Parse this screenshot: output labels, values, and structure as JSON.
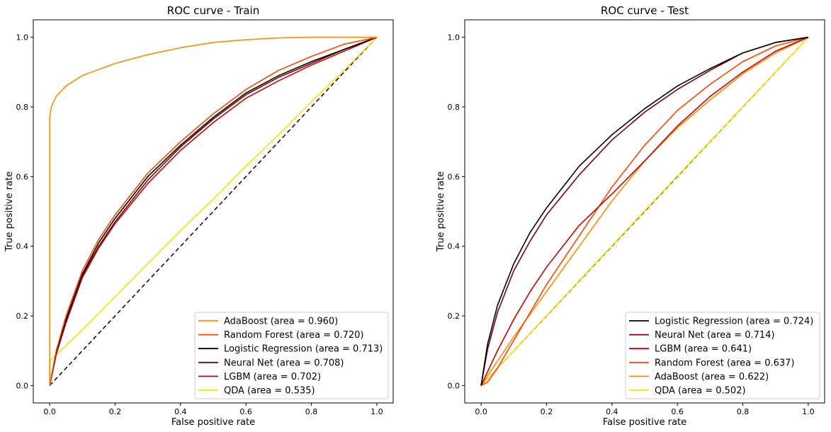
{
  "chart_data": [
    {
      "type": "line",
      "title": "ROC curve - Train",
      "xlabel": "False positive rate",
      "ylabel": "True positive rate",
      "xlim": [
        -0.05,
        1.05
      ],
      "ylim": [
        -0.05,
        1.05
      ],
      "xticks": [
        "0.0",
        "0.2",
        "0.4",
        "0.6",
        "0.8",
        "1.0"
      ],
      "yticks": [
        "0.0",
        "0.2",
        "0.4",
        "0.6",
        "0.8",
        "1.0"
      ],
      "grid": false,
      "legend_position": "lower right",
      "series": [
        {
          "name": "AdaBoost (area = 0.960)",
          "color": "#ff8c00",
          "x": [
            0,
            0,
            0.005,
            0.02,
            0.05,
            0.1,
            0.2,
            0.3,
            0.4,
            0.5,
            0.6,
            0.7,
            0.8,
            0.9,
            1.0
          ],
          "y": [
            0,
            0.77,
            0.8,
            0.83,
            0.86,
            0.89,
            0.925,
            0.95,
            0.97,
            0.985,
            0.993,
            0.998,
            1.0,
            1.0,
            1.0
          ]
        },
        {
          "name": "Random Forest (area = 0.720)",
          "color": "#ff4500",
          "x": [
            0,
            0.02,
            0.05,
            0.1,
            0.15,
            0.2,
            0.3,
            0.4,
            0.5,
            0.6,
            0.7,
            0.8,
            0.9,
            1.0
          ],
          "y": [
            0,
            0.1,
            0.2,
            0.33,
            0.42,
            0.49,
            0.61,
            0.7,
            0.78,
            0.85,
            0.905,
            0.945,
            0.98,
            1.0
          ]
        },
        {
          "name": "Logistic Regression (area = 0.713)",
          "color": "#000000",
          "x": [
            0,
            0.02,
            0.05,
            0.1,
            0.15,
            0.2,
            0.3,
            0.4,
            0.5,
            0.6,
            0.7,
            0.8,
            0.9,
            1.0
          ],
          "y": [
            0,
            0.095,
            0.19,
            0.32,
            0.41,
            0.48,
            0.6,
            0.69,
            0.77,
            0.84,
            0.89,
            0.93,
            0.965,
            1.0
          ]
        },
        {
          "name": "Neural Net (area = 0.708)",
          "color": "#800000",
          "x": [
            0,
            0.02,
            0.05,
            0.1,
            0.15,
            0.2,
            0.3,
            0.4,
            0.5,
            0.6,
            0.7,
            0.8,
            0.9,
            1.0
          ],
          "y": [
            0,
            0.09,
            0.185,
            0.315,
            0.4,
            0.47,
            0.59,
            0.685,
            0.765,
            0.835,
            0.885,
            0.925,
            0.965,
            1.0
          ]
        },
        {
          "name": "LGBM (area = 0.702)",
          "color": "#cc0000",
          "x": [
            0,
            0.02,
            0.05,
            0.1,
            0.15,
            0.2,
            0.3,
            0.4,
            0.5,
            0.6,
            0.7,
            0.8,
            0.9,
            1.0
          ],
          "y": [
            0,
            0.09,
            0.18,
            0.31,
            0.395,
            0.465,
            0.58,
            0.675,
            0.755,
            0.825,
            0.875,
            0.92,
            0.96,
            1.0
          ]
        },
        {
          "name": "QDA (area = 0.535)",
          "color": "#ffe000",
          "x": [
            0,
            0,
            0.1,
            0.2,
            0.3,
            0.4,
            0.5,
            0.6,
            0.7,
            0.8,
            0.9,
            1.0
          ],
          "y": [
            0,
            0.07,
            0.16,
            0.255,
            0.35,
            0.445,
            0.535,
            0.63,
            0.72,
            0.815,
            0.905,
            1.0
          ]
        },
        {
          "name": "",
          "color": "#000000",
          "style": "dashed",
          "x": [
            0,
            1
          ],
          "y": [
            0,
            1
          ]
        }
      ]
    },
    {
      "type": "line",
      "title": "ROC curve - Test",
      "xlabel": "False positive rate",
      "ylabel": "True positive rate",
      "xlim": [
        -0.05,
        1.05
      ],
      "ylim": [
        -0.05,
        1.05
      ],
      "xticks": [
        "0.0",
        "0.2",
        "0.4",
        "0.6",
        "0.8",
        "1.0"
      ],
      "yticks": [
        "0.0",
        "0.2",
        "0.4",
        "0.6",
        "0.8",
        "1.0"
      ],
      "grid": false,
      "legend_position": "lower right",
      "series": [
        {
          "name": "Logistic Regression (area = 0.724)",
          "color": "#000000",
          "x": [
            0,
            0.02,
            0.05,
            0.1,
            0.15,
            0.2,
            0.3,
            0.4,
            0.5,
            0.6,
            0.7,
            0.8,
            0.9,
            1.0
          ],
          "y": [
            0,
            0.12,
            0.23,
            0.35,
            0.44,
            0.51,
            0.63,
            0.72,
            0.795,
            0.86,
            0.91,
            0.955,
            0.985,
            1.0
          ]
        },
        {
          "name": "Neural Net (area = 0.714)",
          "color": "#800000",
          "x": [
            0,
            0.02,
            0.05,
            0.1,
            0.15,
            0.2,
            0.3,
            0.4,
            0.5,
            0.6,
            0.7,
            0.8,
            0.9,
            1.0
          ],
          "y": [
            0,
            0.105,
            0.21,
            0.33,
            0.415,
            0.49,
            0.605,
            0.705,
            0.785,
            0.85,
            0.905,
            0.955,
            0.985,
            1.0
          ]
        },
        {
          "name": "LGBM (area = 0.641)",
          "color": "#cc0000",
          "x": [
            0,
            0.05,
            0.1,
            0.15,
            0.2,
            0.3,
            0.4,
            0.5,
            0.6,
            0.7,
            0.8,
            0.9,
            1.0
          ],
          "y": [
            0,
            0.1,
            0.19,
            0.27,
            0.34,
            0.46,
            0.55,
            0.645,
            0.745,
            0.83,
            0.9,
            0.96,
            1.0
          ]
        },
        {
          "name": "Random Forest (area = 0.637)",
          "color": "#ff4500",
          "x": [
            0,
            0.02,
            0.05,
            0.1,
            0.15,
            0.2,
            0.3,
            0.4,
            0.5,
            0.6,
            0.7,
            0.8,
            0.9,
            1.0
          ],
          "y": [
            0,
            0.01,
            0.05,
            0.13,
            0.21,
            0.29,
            0.43,
            0.57,
            0.69,
            0.79,
            0.865,
            0.93,
            0.975,
            1.0
          ]
        },
        {
          "name": "AdaBoost (area = 0.622)",
          "color": "#ff8c00",
          "x": [
            0,
            0.05,
            0.1,
            0.2,
            0.3,
            0.4,
            0.5,
            0.6,
            0.7,
            0.8,
            0.9,
            1.0
          ],
          "y": [
            0,
            0.07,
            0.14,
            0.27,
            0.4,
            0.53,
            0.645,
            0.74,
            0.82,
            0.895,
            0.955,
            1.0
          ]
        },
        {
          "name": "QDA (area = 0.502)",
          "color": "#ffe000",
          "x": [
            0,
            0.5,
            1.0
          ],
          "y": [
            0,
            0.502,
            1.0
          ]
        },
        {
          "name": "",
          "color": "#000000",
          "style": "dashed",
          "x": [
            0,
            1
          ],
          "y": [
            0,
            1
          ]
        }
      ]
    }
  ]
}
